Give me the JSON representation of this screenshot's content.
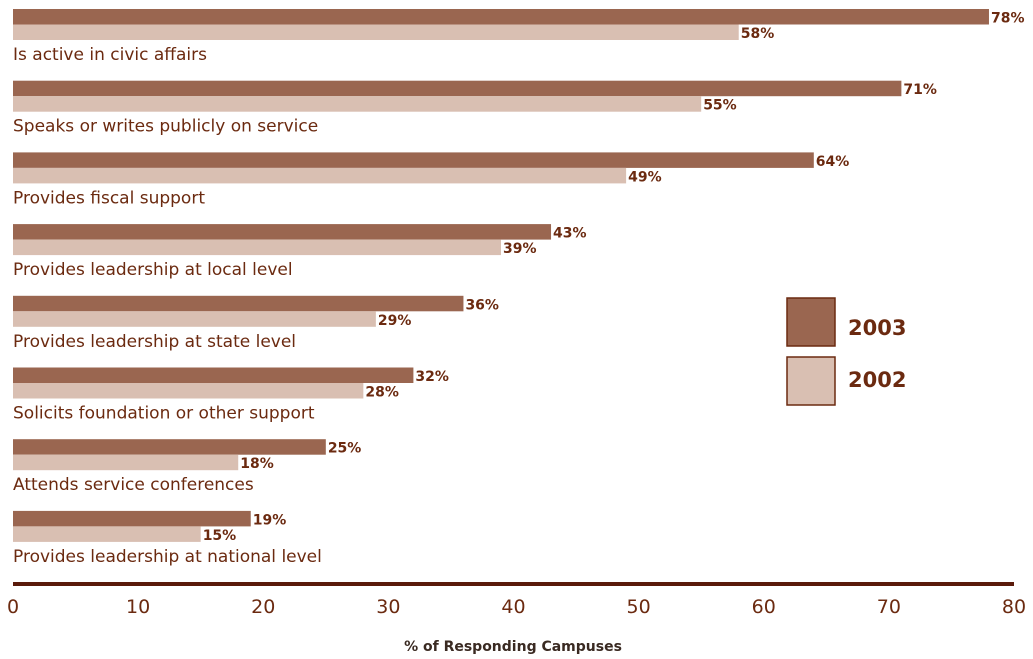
{
  "chart_data": {
    "type": "bar",
    "orientation": "horizontal",
    "categories": [
      "Is active in civic affairs",
      "Speaks or writes publicly on service",
      "Provides fiscal support",
      "Provides leadership at local level",
      "Provides leadership at state level",
      "Solicits foundation or other support",
      "Attends service conferences",
      "Provides leadership at national level"
    ],
    "series": [
      {
        "name": "2003",
        "color": "#9a6650",
        "values": [
          78,
          71,
          64,
          43,
          36,
          32,
          25,
          19
        ],
        "labels": [
          "78%",
          "71%",
          "64%",
          "43%",
          "36%",
          "32%",
          "25%",
          "19%"
        ]
      },
      {
        "name": "2002",
        "color": "#d9bfb2",
        "values": [
          58,
          55,
          49,
          39,
          29,
          28,
          18,
          15
        ],
        "labels": [
          "58%",
          "55%",
          "49%",
          "39%",
          "29%",
          "28%",
          "18%",
          "15%"
        ]
      }
    ],
    "xlabel": "% of Responding Campuses",
    "ylabel": "",
    "xlim": [
      0,
      80
    ],
    "xticks": [
      0,
      10,
      20,
      30,
      40,
      50,
      60,
      70,
      80
    ],
    "grid": false,
    "legend": {
      "placement": "right",
      "entries": [
        "2003",
        "2002"
      ]
    },
    "axis_color": "#5a1a0a"
  }
}
